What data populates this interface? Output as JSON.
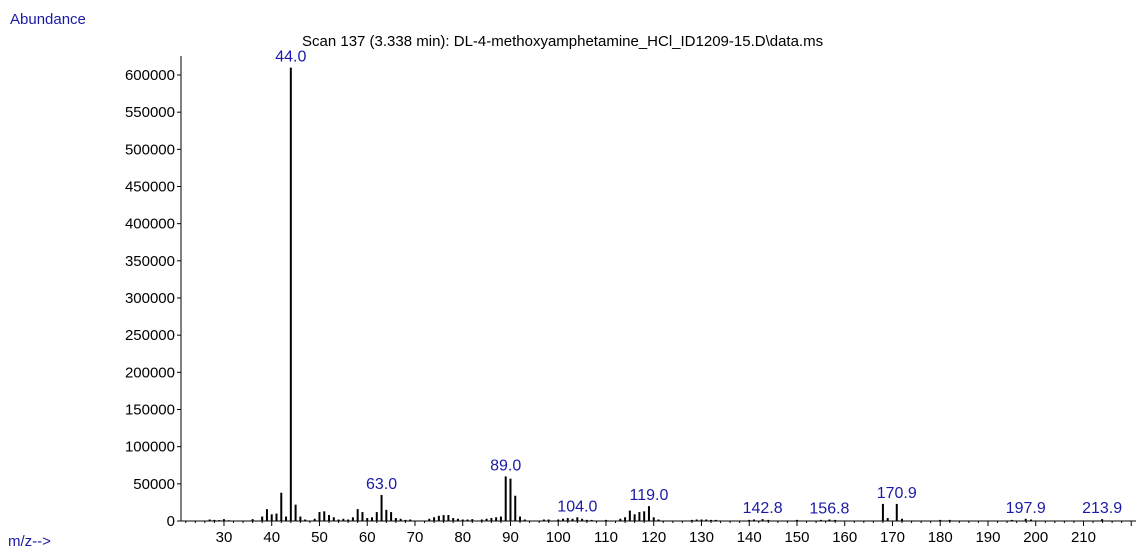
{
  "chart_data": {
    "type": "bar",
    "title": "Scan 137 (3.338 min): DL-4-methoxyamphetamine_HCl_ID1209-15.D\\data.ms",
    "ylabel": "Abundance",
    "xlabel": "m/z-->",
    "xlim": [
      21,
      221
    ],
    "ylim": [
      0,
      620000
    ],
    "x_ticks": [
      30,
      40,
      50,
      60,
      70,
      80,
      90,
      100,
      110,
      120,
      130,
      140,
      150,
      160,
      170,
      180,
      190,
      200,
      210
    ],
    "y_ticks": [
      0,
      50000,
      100000,
      150000,
      200000,
      250000,
      300000,
      350000,
      400000,
      450000,
      500000,
      550000,
      600000
    ],
    "grid": false,
    "colors": {
      "label": "#1a1aa6",
      "peak": "#000000"
    },
    "peaks": [
      {
        "mz": 27,
        "abundance": 2000
      },
      {
        "mz": 28,
        "abundance": 1500
      },
      {
        "mz": 29,
        "abundance": 1200
      },
      {
        "mz": 30,
        "abundance": 2500
      },
      {
        "mz": 31,
        "abundance": 1000
      },
      {
        "mz": 36,
        "abundance": 2500
      },
      {
        "mz": 38,
        "abundance": 6000
      },
      {
        "mz": 39,
        "abundance": 16000
      },
      {
        "mz": 40,
        "abundance": 9000
      },
      {
        "mz": 41,
        "abundance": 10000
      },
      {
        "mz": 42,
        "abundance": 38000
      },
      {
        "mz": 43,
        "abundance": 6000
      },
      {
        "mz": 44.0,
        "abundance": 610000
      },
      {
        "mz": 45,
        "abundance": 22000
      },
      {
        "mz": 46,
        "abundance": 6000
      },
      {
        "mz": 47,
        "abundance": 2000
      },
      {
        "mz": 49,
        "abundance": 3000
      },
      {
        "mz": 50,
        "abundance": 12000
      },
      {
        "mz": 51,
        "abundance": 13000
      },
      {
        "mz": 52,
        "abundance": 8000
      },
      {
        "mz": 53,
        "abundance": 5000
      },
      {
        "mz": 54,
        "abundance": 2000
      },
      {
        "mz": 55,
        "abundance": 3000
      },
      {
        "mz": 56,
        "abundance": 2000
      },
      {
        "mz": 57,
        "abundance": 5000
      },
      {
        "mz": 58,
        "abundance": 16000
      },
      {
        "mz": 59,
        "abundance": 12000
      },
      {
        "mz": 60,
        "abundance": 4000
      },
      {
        "mz": 61,
        "abundance": 5000
      },
      {
        "mz": 62,
        "abundance": 12000
      },
      {
        "mz": 63.0,
        "abundance": 35000
      },
      {
        "mz": 64,
        "abundance": 15000
      },
      {
        "mz": 65,
        "abundance": 12000
      },
      {
        "mz": 66,
        "abundance": 4000
      },
      {
        "mz": 67,
        "abundance": 3000
      },
      {
        "mz": 68,
        "abundance": 1500
      },
      {
        "mz": 69,
        "abundance": 2000
      },
      {
        "mz": 73,
        "abundance": 3000
      },
      {
        "mz": 74,
        "abundance": 5000
      },
      {
        "mz": 75,
        "abundance": 7000
      },
      {
        "mz": 76,
        "abundance": 8000
      },
      {
        "mz": 77,
        "abundance": 8000
      },
      {
        "mz": 78,
        "abundance": 4000
      },
      {
        "mz": 79,
        "abundance": 3000
      },
      {
        "mz": 80,
        "abundance": 2000
      },
      {
        "mz": 81,
        "abundance": 2000
      },
      {
        "mz": 82,
        "abundance": 2500
      },
      {
        "mz": 84,
        "abundance": 2000
      },
      {
        "mz": 85,
        "abundance": 3000
      },
      {
        "mz": 86,
        "abundance": 4000
      },
      {
        "mz": 87,
        "abundance": 5000
      },
      {
        "mz": 88,
        "abundance": 6000
      },
      {
        "mz": 89.0,
        "abundance": 60000
      },
      {
        "mz": 90,
        "abundance": 57000
      },
      {
        "mz": 91,
        "abundance": 34000
      },
      {
        "mz": 92,
        "abundance": 6000
      },
      {
        "mz": 93,
        "abundance": 2000
      },
      {
        "mz": 97,
        "abundance": 2000
      },
      {
        "mz": 98,
        "abundance": 2000
      },
      {
        "mz": 100,
        "abundance": 2000
      },
      {
        "mz": 101,
        "abundance": 3000
      },
      {
        "mz": 102,
        "abundance": 4000
      },
      {
        "mz": 103,
        "abundance": 3000
      },
      {
        "mz": 104.0,
        "abundance": 5000
      },
      {
        "mz": 105,
        "abundance": 3000
      },
      {
        "mz": 106,
        "abundance": 1500
      },
      {
        "mz": 107,
        "abundance": 1500
      },
      {
        "mz": 110,
        "abundance": 1500
      },
      {
        "mz": 113,
        "abundance": 3000
      },
      {
        "mz": 114,
        "abundance": 5000
      },
      {
        "mz": 115,
        "abundance": 14000
      },
      {
        "mz": 116,
        "abundance": 9000
      },
      {
        "mz": 117,
        "abundance": 12000
      },
      {
        "mz": 118,
        "abundance": 13000
      },
      {
        "mz": 119.0,
        "abundance": 20000
      },
      {
        "mz": 120,
        "abundance": 5000
      },
      {
        "mz": 121,
        "abundance": 2000
      },
      {
        "mz": 128,
        "abundance": 1500
      },
      {
        "mz": 129,
        "abundance": 2000
      },
      {
        "mz": 130,
        "abundance": 2000
      },
      {
        "mz": 131,
        "abundance": 2000
      },
      {
        "mz": 132,
        "abundance": 1500
      },
      {
        "mz": 133,
        "abundance": 1500
      },
      {
        "mz": 140,
        "abundance": 1500
      },
      {
        "mz": 141,
        "abundance": 2000
      },
      {
        "mz": 142.8,
        "abundance": 2500
      },
      {
        "mz": 144,
        "abundance": 1500
      },
      {
        "mz": 150,
        "abundance": 1500
      },
      {
        "mz": 155,
        "abundance": 1500
      },
      {
        "mz": 156.8,
        "abundance": 2000
      },
      {
        "mz": 158,
        "abundance": 1500
      },
      {
        "mz": 168,
        "abundance": 23000
      },
      {
        "mz": 169,
        "abundance": 4000
      },
      {
        "mz": 170.9,
        "abundance": 23000
      },
      {
        "mz": 172,
        "abundance": 3000
      },
      {
        "mz": 180,
        "abundance": 1500
      },
      {
        "mz": 182,
        "abundance": 1500
      },
      {
        "mz": 195,
        "abundance": 1500
      },
      {
        "mz": 197.9,
        "abundance": 3000
      },
      {
        "mz": 199,
        "abundance": 2000
      },
      {
        "mz": 213.9,
        "abundance": 2500
      }
    ],
    "peak_labels": [
      {
        "mz": 44.0,
        "abundance": 610000,
        "text": "44.0"
      },
      {
        "mz": 63.0,
        "abundance": 35000,
        "text": "63.0"
      },
      {
        "mz": 89.0,
        "abundance": 60000,
        "text": "89.0"
      },
      {
        "mz": 104.0,
        "abundance": 5000,
        "text": "104.0"
      },
      {
        "mz": 119.0,
        "abundance": 20000,
        "text": "119.0"
      },
      {
        "mz": 142.8,
        "abundance": 2500,
        "text": "142.8"
      },
      {
        "mz": 156.8,
        "abundance": 2000,
        "text": "156.8"
      },
      {
        "mz": 170.9,
        "abundance": 23000,
        "text": "170.9"
      },
      {
        "mz": 197.9,
        "abundance": 3000,
        "text": "197.9"
      },
      {
        "mz": 213.9,
        "abundance": 2500,
        "text": "213.9"
      }
    ]
  }
}
